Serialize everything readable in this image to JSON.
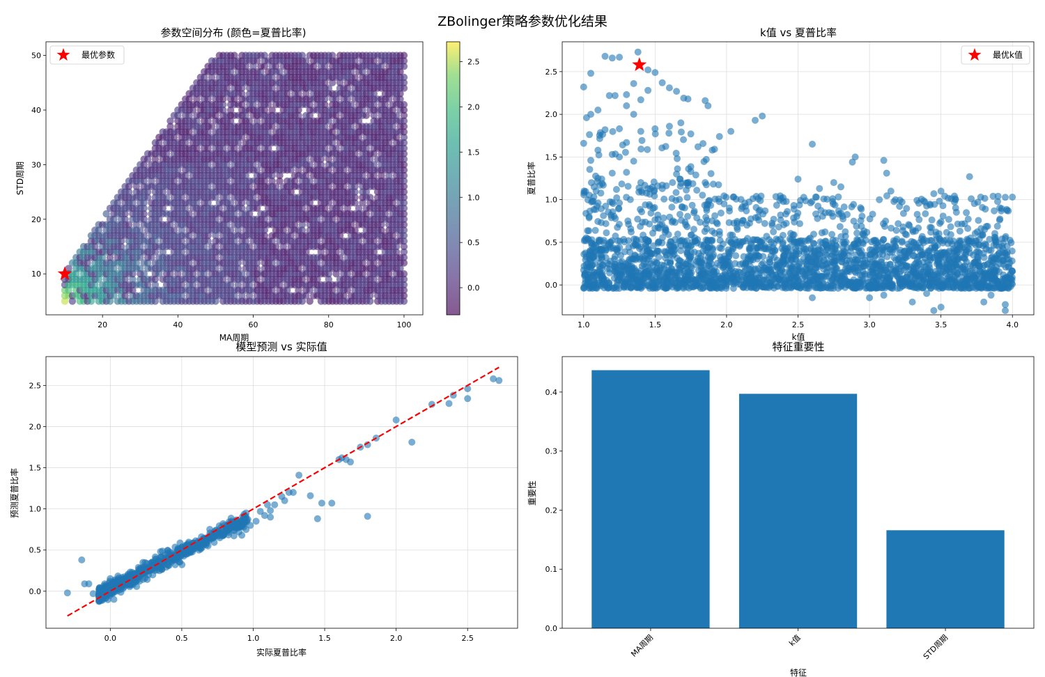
{
  "figure": {
    "suptitle": "ZBolinger策略参数优化结果"
  },
  "chart_data": [
    {
      "type": "scatter",
      "title": "参数空间分布 (颜色=夏普比率)",
      "xlabel": "MA周期",
      "ylabel": "STD周期",
      "xlim": [
        5,
        105
      ],
      "ylim": [
        2.5,
        52.5
      ],
      "xticks": [
        20,
        40,
        60,
        80,
        100
      ],
      "yticks": [
        10,
        20,
        30,
        40,
        50
      ],
      "grid": false,
      "description_points": "dense grid of points for MA 10..100 and STD 5..min(MA,50), color = Sharpe ratio (viridis, alpha 0.6)",
      "high_sharpe_region": {
        "ma": [
          10,
          60
        ],
        "std": [
          5,
          30
        ]
      },
      "best_point": {
        "x": 10,
        "y": 10
      },
      "legend": {
        "position": "upper-left",
        "entries": [
          "最优参数"
        ]
      },
      "colorbar": {
        "range": [
          -0.3,
          2.72
        ],
        "ticks": [
          0.0,
          0.5,
          1.0,
          1.5,
          2.0,
          2.5
        ],
        "cmap": "viridis"
      }
    },
    {
      "type": "scatter",
      "title": "k值 vs 夏普比率",
      "xlabel": "k值",
      "ylabel": "夏普比率",
      "xlim": [
        0.85,
        4.15
      ],
      "ylim": [
        -0.35,
        2.85
      ],
      "xticks": [
        1.0,
        1.5,
        2.0,
        2.5,
        3.0,
        3.5,
        4.0
      ],
      "yticks": [
        0.0,
        0.5,
        1.0,
        1.5,
        2.0,
        2.5
      ],
      "grid": true,
      "color": "#1f77b4",
      "main_band": {
        "y_min": -0.05,
        "y_max": 0.55
      },
      "outliers": [
        [
          1.0,
          2.32
        ],
        [
          1.05,
          2.48
        ],
        [
          1.02,
          1.96
        ],
        [
          1.05,
          2.0
        ],
        [
          1.1,
          2.05
        ],
        [
          1.15,
          2.68
        ],
        [
          1.2,
          2.66
        ],
        [
          1.25,
          2.67
        ],
        [
          1.18,
          2.22
        ],
        [
          1.22,
          2.22
        ],
        [
          1.3,
          2.23
        ],
        [
          1.35,
          2.36
        ],
        [
          1.38,
          2.73
        ],
        [
          1.45,
          2.52
        ],
        [
          1.5,
          2.49
        ],
        [
          1.45,
          2.28
        ],
        [
          1.55,
          2.37
        ],
        [
          1.6,
          2.31
        ],
        [
          1.65,
          2.27
        ],
        [
          1.7,
          2.19
        ],
        [
          1.73,
          2.18
        ],
        [
          1.85,
          2.16
        ],
        [
          1.87,
          2.1
        ],
        [
          1.3,
          2.1
        ],
        [
          1.35,
          2.0
        ],
        [
          1.4,
          2.17
        ],
        [
          1.15,
          1.82
        ],
        [
          1.25,
          1.83
        ],
        [
          1.4,
          1.8
        ],
        [
          1.5,
          1.83
        ],
        [
          1.6,
          1.86
        ],
        [
          1.68,
          1.9
        ],
        [
          1.75,
          1.77
        ],
        [
          1.8,
          1.62
        ],
        [
          1.9,
          1.58
        ],
        [
          1.95,
          1.74
        ],
        [
          2.03,
          1.8
        ],
        [
          2.25,
          1.98
        ],
        [
          2.2,
          1.93
        ],
        [
          2.6,
          1.65
        ],
        [
          2.9,
          1.5
        ],
        [
          2.88,
          1.44
        ],
        [
          3.1,
          1.46
        ],
        [
          3.12,
          1.31
        ],
        [
          3.7,
          1.27
        ],
        [
          3.6,
          1.01
        ],
        [
          3.9,
          1.04
        ],
        [
          4.0,
          1.03
        ],
        [
          3.5,
          1.1
        ],
        [
          3.45,
          1.07
        ],
        [
          3.15,
          1.1
        ],
        [
          2.5,
          1.24
        ],
        [
          2.65,
          1.13
        ],
        [
          2.75,
          1.2
        ],
        [
          2.8,
          1.15
        ],
        [
          1.0,
          1.66
        ],
        [
          1.05,
          1.46
        ],
        [
          1.1,
          1.58
        ],
        [
          1.2,
          1.53
        ],
        [
          1.25,
          1.5
        ],
        [
          1.3,
          1.67
        ],
        [
          1.1,
          1.25
        ],
        [
          1.2,
          1.31
        ],
        [
          1.3,
          1.32
        ],
        [
          1.4,
          1.2
        ],
        [
          1.45,
          1.13
        ],
        [
          1.55,
          1.17
        ],
        [
          1.65,
          1.3
        ],
        [
          1.75,
          1.33
        ],
        [
          1.85,
          1.2
        ],
        [
          3.0,
          -0.15
        ],
        [
          3.1,
          -0.12
        ],
        [
          3.3,
          -0.2
        ],
        [
          3.45,
          -0.3
        ],
        [
          3.5,
          -0.26
        ],
        [
          3.8,
          -0.2
        ],
        [
          3.95,
          -0.3
        ],
        [
          3.95,
          -0.23
        ],
        [
          2.6,
          -0.15
        ],
        [
          3.4,
          -0.1
        ],
        [
          3.85,
          -0.12
        ]
      ],
      "best_point": {
        "x": 1.39,
        "y": 2.58
      },
      "legend": {
        "position": "upper-right",
        "entries": [
          "最优k值"
        ]
      }
    },
    {
      "type": "scatter",
      "title": "模型预测 vs 实际值",
      "xlabel": "实际夏普比率",
      "ylabel": "预测夏普比率",
      "xlim": [
        -0.45,
        2.85
      ],
      "ylim": [
        -0.45,
        2.85
      ],
      "xticks": [
        0.0,
        0.5,
        1.0,
        1.5,
        2.0,
        2.5
      ],
      "yticks": [
        0.0,
        0.5,
        1.0,
        1.5,
        2.0,
        2.5
      ],
      "grid": true,
      "color": "#1f77b4",
      "reference_line": {
        "from": [
          -0.3,
          -0.3
        ],
        "to": [
          2.72,
          2.72
        ],
        "color": "#ff0000",
        "style": "dashed"
      },
      "outliers": [
        [
          -0.3,
          -0.02
        ],
        [
          -0.2,
          0.38
        ],
        [
          -0.18,
          0.09
        ],
        [
          -0.15,
          0.09
        ],
        [
          -0.12,
          -0.03
        ],
        [
          1.2,
          1.15
        ],
        [
          1.25,
          1.2
        ],
        [
          1.32,
          1.41
        ],
        [
          1.4,
          1.16
        ],
        [
          1.45,
          0.88
        ],
        [
          1.48,
          1.07
        ],
        [
          1.55,
          1.07
        ],
        [
          1.6,
          1.6
        ],
        [
          1.62,
          1.62
        ],
        [
          1.65,
          1.6
        ],
        [
          1.68,
          1.57
        ],
        [
          1.75,
          1.75
        ],
        [
          1.8,
          1.78
        ],
        [
          1.86,
          1.86
        ],
        [
          1.8,
          0.91
        ],
        [
          2.0,
          2.08
        ],
        [
          2.11,
          1.81
        ],
        [
          2.25,
          2.27
        ],
        [
          2.37,
          2.28
        ],
        [
          2.4,
          2.38
        ],
        [
          2.5,
          2.46
        ],
        [
          2.5,
          2.34
        ],
        [
          2.68,
          2.58
        ],
        [
          2.72,
          2.56
        ],
        [
          1.28,
          1.2
        ],
        [
          1.22,
          1.1
        ],
        [
          1.15,
          1.05
        ],
        [
          1.12,
          0.98
        ],
        [
          1.05,
          0.97
        ],
        [
          1.1,
          1.05
        ],
        [
          1.08,
          0.92
        ],
        [
          1.12,
          0.9
        ],
        [
          1.02,
          0.85
        ],
        [
          0.98,
          0.8
        ],
        [
          0.95,
          0.95
        ],
        [
          0.9,
          0.72
        ],
        [
          0.95,
          0.75
        ],
        [
          0.85,
          0.85
        ],
        [
          0.92,
          0.68
        ]
      ],
      "main_cluster": {
        "x": [
          -0.1,
          1.0
        ],
        "y": [
          -0.05,
          0.95
        ]
      }
    },
    {
      "type": "bar",
      "title": "特征重要性",
      "xlabel": "特征",
      "ylabel": "重要性",
      "categories": [
        "MA周期",
        "k值",
        "STD周期"
      ],
      "values": [
        0.437,
        0.397,
        0.166
      ],
      "ylim": [
        0,
        0.46
      ],
      "yticks": [
        0.0,
        0.1,
        0.2,
        0.3,
        0.4
      ],
      "color": "#1f77b4",
      "grid": false
    }
  ]
}
